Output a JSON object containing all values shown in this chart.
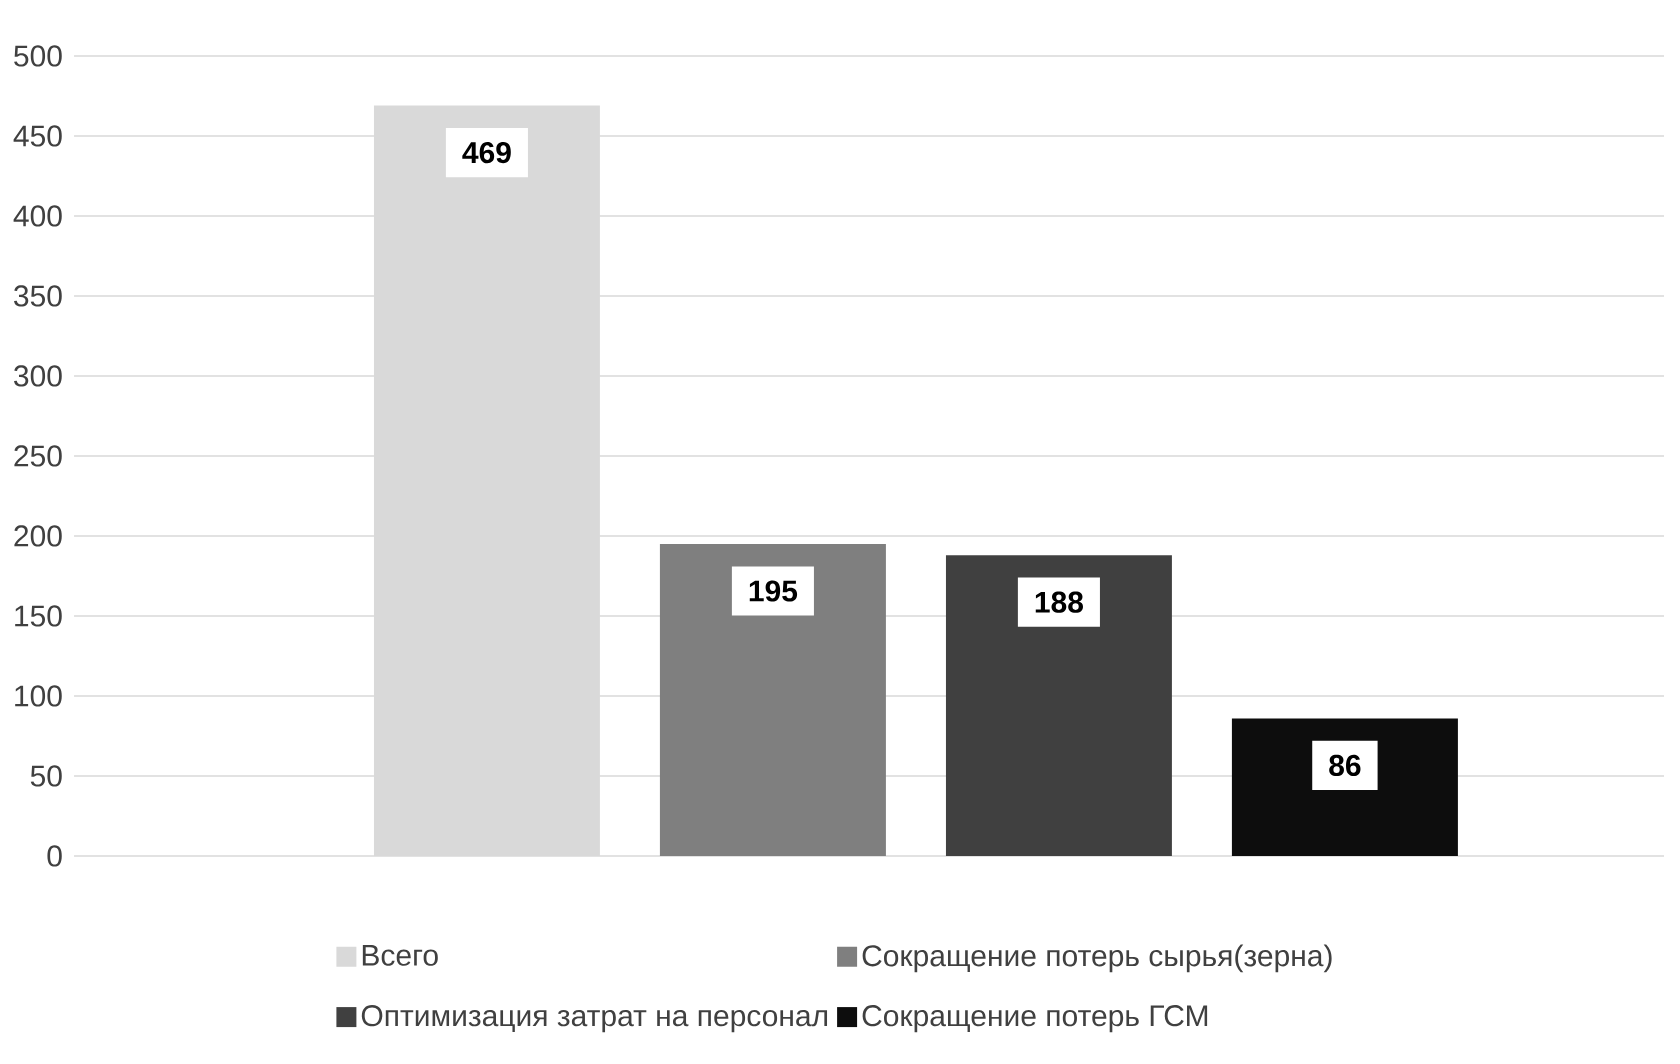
{
  "chart_data": {
    "type": "bar",
    "categories": [
      null
    ],
    "series": [
      {
        "name": "Всего",
        "color": "#d9d9d9",
        "values": [
          469
        ]
      },
      {
        "name": "Сокращение потерь сырья(зерна)",
        "color": "#7f7f7f",
        "values": [
          195
        ]
      },
      {
        "name": "Оптимизация затрат на персонал",
        "color": "#404040",
        "values": [
          188
        ]
      },
      {
        "name": "Сокращение потерь ГСМ",
        "color": "#0d0d0d",
        "values": [
          86
        ]
      }
    ],
    "ylim": [
      0,
      500
    ],
    "yticks": [
      0,
      50,
      100,
      150,
      200,
      250,
      300,
      350,
      400,
      450,
      500
    ],
    "grid": "y",
    "legend": "bottom",
    "data_labels": true
  }
}
